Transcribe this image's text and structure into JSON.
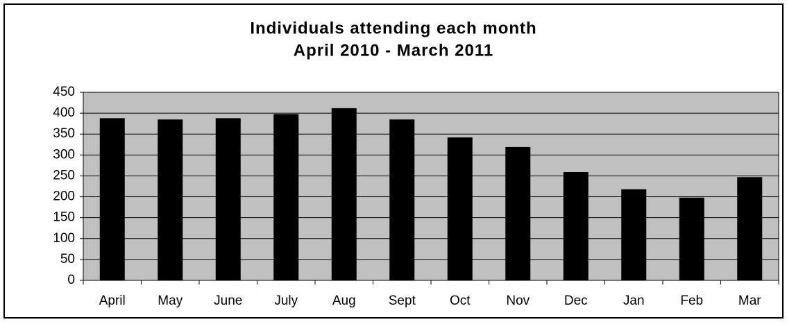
{
  "chart_data": {
    "type": "bar",
    "title": "Individuals attending each month",
    "subtitle": "April 2010 - March 2011",
    "categories": [
      "April",
      "May",
      "June",
      "July",
      "Aug",
      "Sept",
      "Oct",
      "Nov",
      "Dec",
      "Jan",
      "Feb",
      "Mar"
    ],
    "values": [
      388,
      385,
      388,
      398,
      412,
      385,
      342,
      319,
      259,
      218,
      198,
      247
    ],
    "color": "#000000",
    "plot_background": "#c0c0c0",
    "ylim": [
      0,
      450
    ],
    "yticks": [
      0,
      50,
      100,
      150,
      200,
      250,
      300,
      350,
      400,
      450
    ],
    "grid": true
  }
}
